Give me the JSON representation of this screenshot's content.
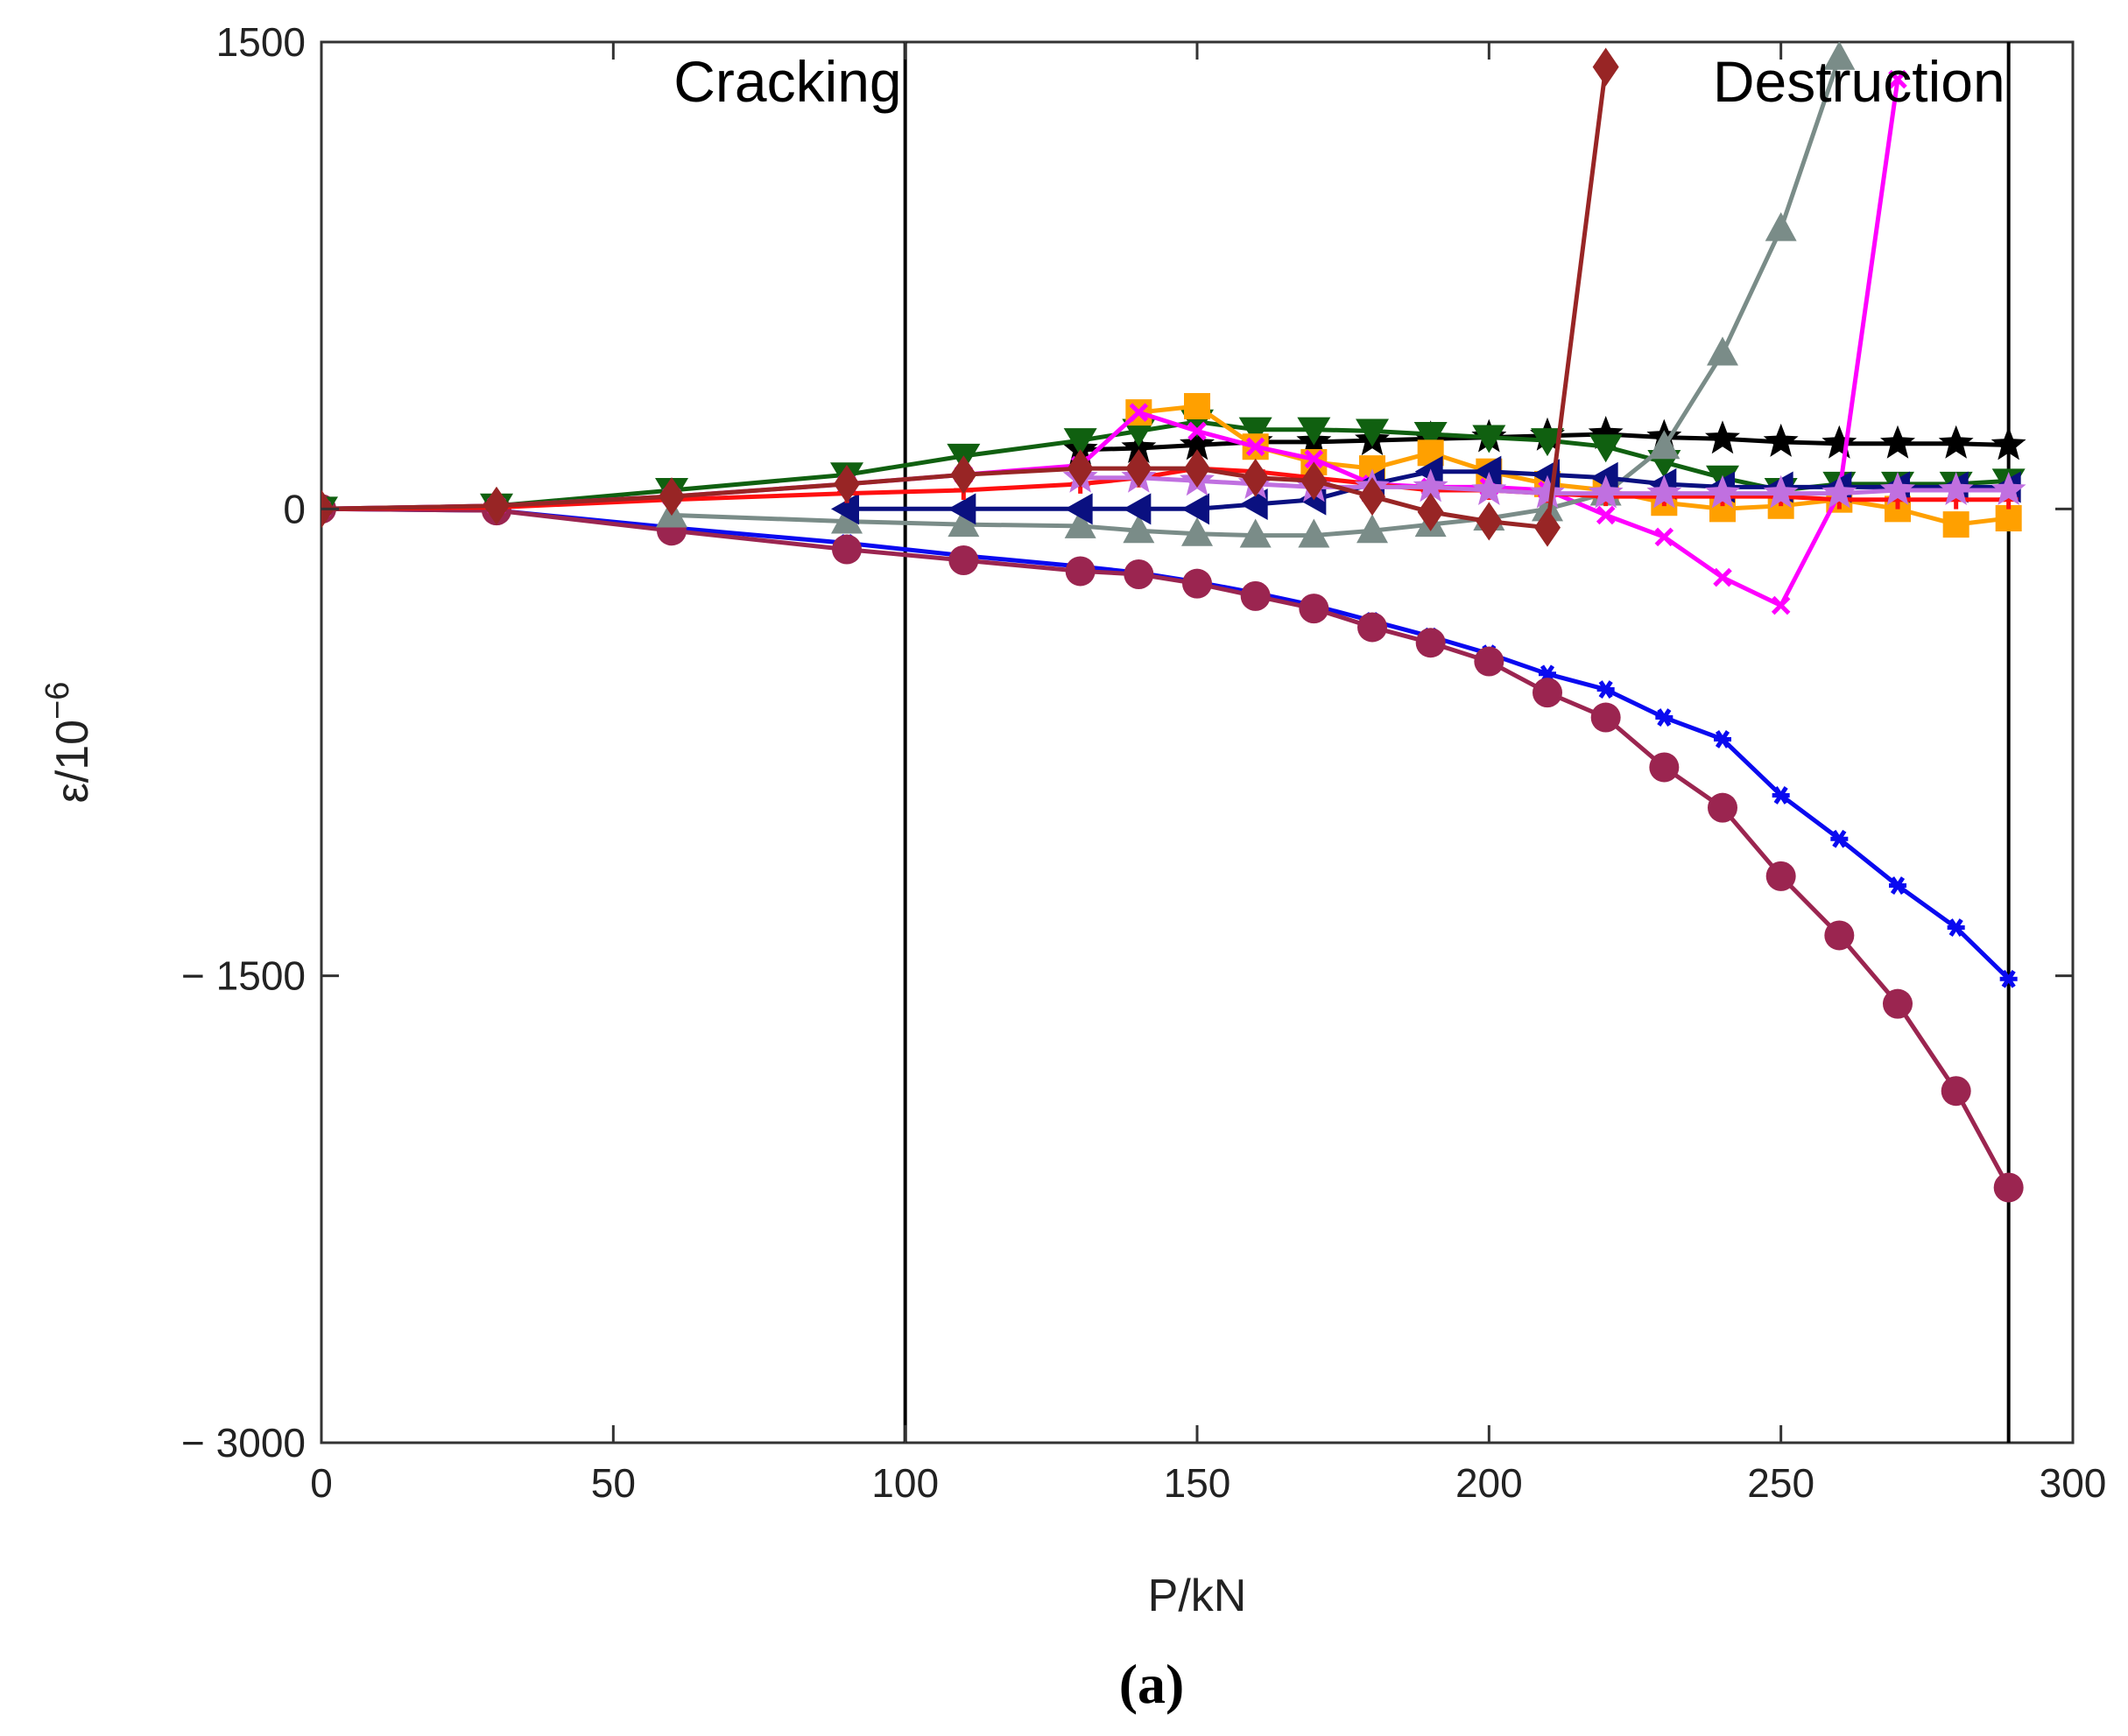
{
  "chart_data": {
    "type": "line",
    "title": "",
    "xlabel": "P/kN",
    "ylabel_base": "ε/10",
    "ylabel_exp": "−6",
    "xlim": [
      0,
      300
    ],
    "ylim": [
      -3000,
      1500
    ],
    "xticks": [
      0,
      50,
      100,
      150,
      200,
      250,
      300
    ],
    "xtick_labels": [
      "0",
      "50",
      "100",
      "150",
      "200",
      "250",
      "300"
    ],
    "yticks": [
      -3000,
      -1500,
      0,
      1500
    ],
    "ytick_labels": [
      "− 3000",
      "− 1500",
      "0",
      "1500"
    ],
    "grid": false,
    "legend": "none",
    "caption": "(a)",
    "vlines": [
      {
        "x": 100,
        "label": "Cracking",
        "label_anchor": "end"
      },
      {
        "x": 289,
        "label": "Destruction",
        "label_anchor": "end"
      }
    ],
    "series": [
      {
        "name": "blue-asterisk",
        "color": "#0a0af0",
        "marker": "asterisk",
        "x": [
          0,
          30,
          60,
          90,
          110,
          130,
          140,
          150,
          160,
          170,
          180,
          190,
          200,
          210,
          220,
          230,
          240,
          250,
          260,
          270,
          280,
          289
        ],
        "y": [
          0,
          -5,
          -60,
          -110,
          -150,
          -185,
          -205,
          -235,
          -270,
          -310,
          -360,
          -410,
          -465,
          -530,
          -580,
          -670,
          -740,
          -920,
          -1060,
          -1210,
          -1345,
          -1510
        ]
      },
      {
        "name": "maroon-circle",
        "color": "#9b2550",
        "marker": "circle",
        "x": [
          0,
          30,
          60,
          90,
          110,
          130,
          140,
          150,
          160,
          170,
          180,
          190,
          200,
          210,
          220,
          230,
          240,
          250,
          260,
          270,
          280,
          289
        ],
        "y": [
          0,
          -5,
          -70,
          -130,
          -165,
          -200,
          -210,
          -240,
          -280,
          -320,
          -380,
          -430,
          -490,
          -590,
          -670,
          -830,
          -960,
          -1180,
          -1370,
          -1590,
          -1870,
          -2180
        ]
      },
      {
        "name": "black-star",
        "color": "#000000",
        "marker": "star",
        "x": [
          130,
          140,
          150,
          160,
          170,
          180,
          190,
          200,
          210,
          220,
          230,
          240,
          250,
          260,
          270,
          280,
          289
        ],
        "y": [
          190,
          195,
          205,
          215,
          215,
          220,
          225,
          230,
          235,
          240,
          230,
          225,
          215,
          210,
          210,
          210,
          205
        ]
      },
      {
        "name": "green-triangle-down",
        "color": "#106010",
        "marker": "triangle-down",
        "x": [
          0,
          30,
          60,
          90,
          110,
          130,
          140,
          150,
          160,
          170,
          180,
          190,
          200,
          210,
          220,
          230,
          240,
          250,
          260,
          270,
          280,
          289
        ],
        "y": [
          0,
          10,
          60,
          110,
          170,
          220,
          250,
          280,
          255,
          255,
          250,
          240,
          230,
          220,
          200,
          150,
          100,
          60,
          80,
          80,
          80,
          90
        ]
      },
      {
        "name": "orange-square",
        "color": "#ffa000",
        "marker": "square",
        "x": [
          140,
          150,
          160,
          170,
          180,
          190,
          200,
          210,
          220,
          230,
          240,
          250,
          260,
          270,
          280,
          289
        ],
        "y": [
          310,
          330,
          200,
          150,
          130,
          180,
          120,
          80,
          60,
          20,
          0,
          10,
          30,
          0,
          -50,
          -30
        ]
      },
      {
        "name": "magenta-x",
        "color": "#ff00ff",
        "marker": "x",
        "x": [
          0,
          30,
          60,
          90,
          110,
          130,
          140,
          150,
          160,
          170,
          180,
          190,
          200,
          210,
          220,
          230,
          240,
          250,
          260,
          270
        ],
        "y": [
          0,
          10,
          40,
          80,
          110,
          140,
          310,
          250,
          200,
          160,
          80,
          70,
          70,
          60,
          -20,
          -90,
          -220,
          -310,
          50,
          1380
        ]
      },
      {
        "name": "gray-triangle-up",
        "color": "#7a8c88",
        "marker": "triangle-up",
        "x": [
          60,
          90,
          110,
          130,
          140,
          150,
          160,
          170,
          180,
          190,
          200,
          210,
          220,
          230,
          240,
          250,
          260
        ],
        "y": [
          -20,
          -40,
          -50,
          -55,
          -70,
          -80,
          -85,
          -85,
          -70,
          -50,
          -30,
          0,
          50,
          200,
          500,
          900,
          1450
        ]
      },
      {
        "name": "navy-triangle-left",
        "color": "#0a1080",
        "marker": "triangle-left",
        "x": [
          90,
          110,
          130,
          140,
          150,
          160,
          170,
          180,
          190,
          200,
          210,
          220,
          230,
          240,
          250,
          260,
          270,
          280,
          289
        ],
        "y": [
          0,
          0,
          0,
          0,
          0,
          15,
          30,
          80,
          120,
          120,
          110,
          100,
          80,
          70,
          70,
          70,
          70,
          70,
          70
        ]
      },
      {
        "name": "red-plus",
        "color": "#ff1010",
        "marker": "plus",
        "x": [
          0,
          30,
          60,
          90,
          110,
          130,
          140,
          150,
          160,
          170,
          180,
          190,
          200,
          210,
          220,
          230,
          240,
          250,
          260,
          270,
          280,
          289
        ],
        "y": [
          0,
          5,
          30,
          50,
          60,
          80,
          100,
          130,
          120,
          100,
          80,
          60,
          60,
          50,
          40,
          40,
          40,
          40,
          30,
          30,
          30,
          30
        ]
      },
      {
        "name": "violet-star",
        "color": "#c070e0",
        "marker": "star",
        "x": [
          130,
          140,
          150,
          160,
          170,
          180,
          190,
          200,
          210,
          220,
          230,
          240,
          250,
          260,
          270,
          280,
          289
        ],
        "y": [
          100,
          100,
          90,
          80,
          70,
          70,
          70,
          60,
          50,
          50,
          50,
          50,
          50,
          50,
          60,
          60,
          60
        ]
      },
      {
        "name": "brown-diamond",
        "color": "#982525",
        "marker": "diamond",
        "x": [
          0,
          30,
          60,
          90,
          110,
          130,
          140,
          150,
          160,
          170,
          180,
          190,
          200,
          210,
          220
        ],
        "y": [
          0,
          10,
          40,
          80,
          110,
          130,
          130,
          130,
          100,
          90,
          40,
          -10,
          -40,
          -60,
          1420
        ]
      }
    ]
  }
}
